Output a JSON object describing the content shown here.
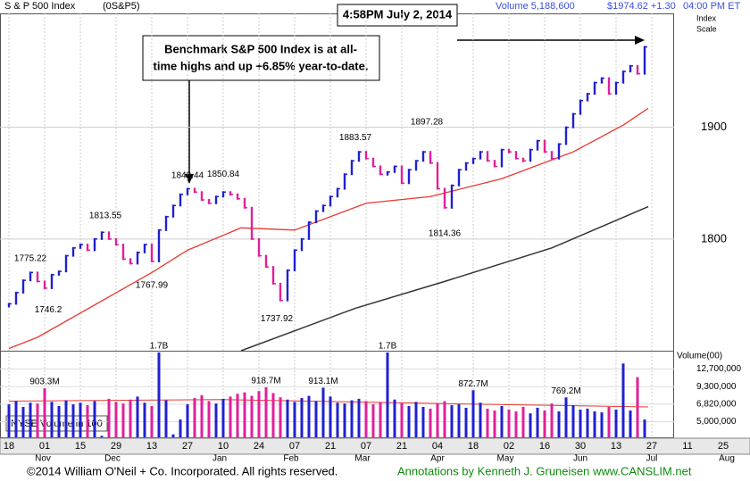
{
  "chart_data": {
    "type": "stock",
    "title": "S & P 500 Index",
    "symbol": "(0S&P5)",
    "header_volume": "Volume 5,188,600",
    "header_price": "$1974.62 +1.30",
    "header_time": "04:00 PM ET",
    "timestamp": "4:58PM July 2, 2014",
    "annotation": [
      "Benchmark S&P 500 Index is at all-",
      "time highs and up +6.85% year-to-date."
    ],
    "y_axis_label": [
      "Index",
      "Scale"
    ],
    "grid": true,
    "xlim": [
      -2.5,
      186.25
    ],
    "xticks": [
      {
        "value": 0,
        "label": "18"
      },
      {
        "value": 10,
        "label": "01"
      },
      {
        "value": 20,
        "label": "15"
      },
      {
        "value": 30,
        "label": "29"
      },
      {
        "value": 40,
        "label": "13"
      },
      {
        "value": 50,
        "label": "27"
      },
      {
        "value": 60,
        "label": "10"
      },
      {
        "value": 70,
        "label": "24"
      },
      {
        "value": 80,
        "label": "07"
      },
      {
        "value": 90,
        "label": "21"
      },
      {
        "value": 100,
        "label": "07"
      },
      {
        "value": 110,
        "label": "21"
      },
      {
        "value": 120,
        "label": "04"
      },
      {
        "value": 130,
        "label": "18"
      },
      {
        "value": 140,
        "label": "02"
      },
      {
        "value": 150,
        "label": "16"
      },
      {
        "value": 160,
        "label": "30"
      },
      {
        "value": 170,
        "label": "13"
      },
      {
        "value": 180,
        "label": "27"
      },
      {
        "value": 190,
        "label": "11"
      },
      {
        "value": 200,
        "label": "25"
      }
    ],
    "months": [
      {
        "value": 9.5,
        "label": "Nov"
      },
      {
        "value": 29,
        "label": "Dec"
      },
      {
        "value": 59,
        "label": "Jan"
      },
      {
        "value": 79,
        "label": "Feb"
      },
      {
        "value": 99,
        "label": "Mar"
      },
      {
        "value": 120,
        "label": "Apr"
      },
      {
        "value": 139,
        "label": "May"
      },
      {
        "value": 160,
        "label": "Jun"
      },
      {
        "value": 180,
        "label": "Jul"
      },
      {
        "value": 201,
        "label": "Aug"
      }
    ],
    "ylim": [
      1700,
      2002
    ],
    "yticks": [
      1800,
      1900
    ],
    "x": [
      0,
      2,
      4,
      6,
      8,
      10,
      12,
      14,
      16,
      18,
      20,
      22,
      24,
      26,
      28,
      30,
      32,
      34,
      36,
      38,
      40,
      42,
      44,
      46,
      48,
      50,
      52,
      54,
      56,
      58,
      60,
      62,
      64,
      66,
      68,
      70,
      72,
      74,
      76,
      78,
      80,
      82,
      84,
      86,
      88,
      90,
      92,
      94,
      96,
      98,
      100,
      102,
      104,
      106,
      108,
      110,
      112,
      114,
      116,
      118,
      120,
      122,
      124,
      126,
      128,
      130,
      132,
      134,
      136,
      138,
      140,
      142,
      144,
      146,
      148,
      150,
      152,
      154,
      156,
      158,
      160,
      162,
      164,
      166,
      168,
      170,
      172,
      174,
      176,
      178
    ],
    "price": {
      "up_color": "#2020d0",
      "down_color": "#e0209a",
      "values": [
        1742,
        1752,
        1763,
        1770,
        1762,
        1756,
        1768,
        1771,
        1785,
        1792,
        1795,
        1790,
        1800,
        1806,
        1800,
        1795,
        1782,
        1778,
        1788,
        1795,
        1780,
        1808,
        1820,
        1830,
        1840,
        1845,
        1842,
        1835,
        1832,
        1838,
        1842,
        1840,
        1836,
        1828,
        1800,
        1785,
        1775,
        1760,
        1745,
        1772,
        1790,
        1800,
        1815,
        1825,
        1830,
        1838,
        1845,
        1858,
        1870,
        1878,
        1872,
        1865,
        1858,
        1860,
        1865,
        1850,
        1862,
        1870,
        1878,
        1868,
        1845,
        1828,
        1848,
        1862,
        1868,
        1872,
        1878,
        1870,
        1865,
        1880,
        1878,
        1872,
        1870,
        1880,
        1888,
        1878,
        1872,
        1885,
        1900,
        1912,
        1924,
        1930,
        1940,
        1944,
        1930,
        1940,
        1950,
        1955,
        1948,
        1972
      ]
    },
    "ma50": {
      "color": "#e8382e",
      "x": [
        0,
        8,
        40,
        50,
        65,
        80,
        100,
        118,
        138,
        158,
        172,
        179
      ],
      "values": [
        1702,
        1712,
        1770,
        1790,
        1810,
        1808,
        1832,
        1838,
        1854,
        1878,
        1902,
        1917
      ]
    },
    "ma200": {
      "color": "#333333",
      "x": [
        65,
        97,
        122,
        152,
        179
      ],
      "values": [
        1700,
        1738,
        1762,
        1792,
        1829
      ]
    },
    "highs": [
      {
        "x": 6,
        "value": 1775.22
      },
      {
        "x": 27,
        "value": 1813.55
      },
      {
        "x": 50,
        "value": 1849.44
      },
      {
        "x": 60,
        "value": 1850.84
      },
      {
        "x": 97,
        "value": 1883.57
      },
      {
        "x": 117,
        "value": 1897.28
      }
    ],
    "lows": [
      {
        "x": 11,
        "value": 1746.2
      },
      {
        "x": 40,
        "value": 1767.99
      },
      {
        "x": 75,
        "value": 1737.92
      },
      {
        "x": 122,
        "value": 1814.36
      }
    ],
    "volume": {
      "label": "Volume(00)",
      "legend": "NYSE Volume in 100",
      "log": true,
      "ylim": [
        3800000,
        17000000
      ],
      "yticks": [
        {
          "value": 12700000,
          "label": "12,700,000"
        },
        {
          "value": 9300000,
          "label": "9,300,000"
        },
        {
          "value": 6820000,
          "label": "6,820,000"
        },
        {
          "value": 5000000,
          "label": "5,000,000"
        }
      ],
      "values": [
        6800000,
        7200000,
        6500000,
        7000000,
        6900000,
        9033000,
        7100000,
        6600000,
        7300000,
        6800000,
        7000000,
        6700000,
        7200000,
        3900000,
        7500000,
        7100000,
        6900000,
        7400000,
        7800000,
        7000000,
        6600000,
        17000000,
        7300000,
        4000000,
        5200000,
        6800000,
        7600000,
        8000000,
        7200000,
        6900000,
        7500000,
        7800000,
        8200000,
        8400000,
        7900000,
        8600000,
        9187000,
        8300000,
        7700000,
        7400000,
        7100000,
        7600000,
        7900000,
        7200000,
        9131000,
        7800000,
        7000000,
        6900000,
        7300000,
        7500000,
        7200000,
        6800000,
        7100000,
        17000000,
        7400000,
        7000000,
        6600000,
        7100000,
        6500000,
        6300000,
        6900000,
        7200000,
        6700000,
        6800000,
        6400000,
        8727000,
        7000000,
        6300000,
        6100000,
        6600000,
        6200000,
        6000000,
        6500000,
        5800000,
        6400000,
        6100000,
        6900000,
        6000000,
        7692000,
        6700000,
        6200000,
        6300000,
        6000000,
        5900000,
        6500000,
        6200000,
        14000000,
        6100000,
        11000000,
        5200000
      ],
      "value_labels": [
        null,
        null,
        null,
        null,
        null,
        "903.3M",
        null,
        null,
        null,
        null,
        null,
        null,
        null,
        null,
        null,
        null,
        null,
        null,
        null,
        null,
        null,
        "1.7B",
        null,
        null,
        null,
        null,
        null,
        null,
        null,
        null,
        null,
        null,
        null,
        null,
        null,
        null,
        "918.7M",
        null,
        null,
        null,
        null,
        null,
        null,
        null,
        "913.1M",
        null,
        null,
        null,
        null,
        null,
        null,
        null,
        null,
        "1.7B",
        null,
        null,
        null,
        null,
        null,
        null,
        null,
        null,
        null,
        null,
        null,
        "872.7M",
        null,
        null,
        null,
        null,
        null,
        null,
        null,
        null,
        null,
        null,
        null,
        null,
        "769.2M",
        null,
        null,
        null,
        null,
        null,
        null,
        null,
        null,
        null,
        null,
        null
      ],
      "avg": {
        "color": "#e8382e",
        "x": [
          0,
          60,
          120,
          179
        ],
        "values": [
          7200000,
          7400000,
          6900000,
          6500000
        ]
      }
    }
  },
  "footer": {
    "copyright": "©2014 William O'Neil + Co. Incorporated. All rights reserved.",
    "credit": "Annotations by Kenneth J. Gruneisen www.CANSLIM.net"
  }
}
